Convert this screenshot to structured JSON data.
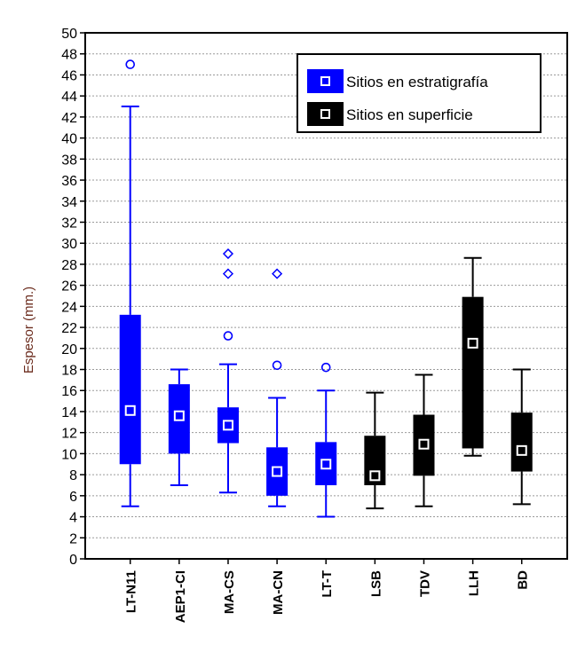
{
  "chart_data": {
    "type": "boxplot",
    "ylabel": "Espesor (mm.)",
    "ylim": [
      0,
      50
    ],
    "yticks": [
      0,
      2,
      4,
      6,
      8,
      10,
      12,
      14,
      16,
      18,
      20,
      22,
      24,
      26,
      28,
      30,
      32,
      34,
      36,
      38,
      40,
      42,
      44,
      46,
      48,
      50
    ],
    "grid": "horizontal-dotted",
    "legend_position": "top-right",
    "legend": [
      {
        "label": "Sitios en estratigrafía",
        "color": "#0000ff",
        "group": "estratigrafia"
      },
      {
        "label": "Sitios en superficie",
        "color": "#000000",
        "group": "superficie"
      }
    ],
    "categories": [
      "LT-N11",
      "AEP1-CI",
      "MA-CS",
      "MA-CN",
      "LT-T",
      "LSB",
      "TDV",
      "LLH",
      "BD"
    ],
    "boxes": [
      {
        "name": "LT-N11",
        "group": "estratigrafia",
        "median": 14.1,
        "q1": 9.0,
        "q3": 23.2,
        "whisker_low": 5.0,
        "whisker_high": 43.0,
        "outliers": [
          47.0
        ],
        "outlier_marker": "circle"
      },
      {
        "name": "AEP1-CI",
        "group": "estratigrafia",
        "median": 13.6,
        "q1": 10.0,
        "q3": 16.6,
        "whisker_low": 7.0,
        "whisker_high": 18.0,
        "outliers": [],
        "outlier_marker": "circle"
      },
      {
        "name": "MA-CS",
        "group": "estratigrafia",
        "median": 12.7,
        "q1": 11.0,
        "q3": 14.4,
        "whisker_low": 6.3,
        "whisker_high": 18.5,
        "outliers": [
          21.2
        ],
        "outlier_marker": "circle",
        "extremes": [
          27.1,
          29.0
        ],
        "extreme_marker": "diamond"
      },
      {
        "name": "MA-CN",
        "group": "estratigrafia",
        "median": 8.3,
        "q1": 6.0,
        "q3": 10.6,
        "whisker_low": 5.0,
        "whisker_high": 15.3,
        "outliers": [
          18.4
        ],
        "outlier_marker": "circle",
        "extremes": [
          27.1
        ],
        "extreme_marker": "diamond"
      },
      {
        "name": "LT-T",
        "group": "estratigrafia",
        "median": 9.0,
        "q1": 7.0,
        "q3": 11.1,
        "whisker_low": 4.0,
        "whisker_high": 16.0,
        "outliers": [
          18.2
        ],
        "outlier_marker": "circle"
      },
      {
        "name": "LSB",
        "group": "superficie",
        "median": 7.9,
        "q1": 7.0,
        "q3": 11.7,
        "whisker_low": 4.8,
        "whisker_high": 15.8,
        "outliers": []
      },
      {
        "name": "TDV",
        "group": "superficie",
        "median": 10.9,
        "q1": 7.9,
        "q3": 13.7,
        "whisker_low": 5.0,
        "whisker_high": 17.5,
        "outliers": []
      },
      {
        "name": "LLH",
        "group": "superficie",
        "median": 20.5,
        "q1": 10.5,
        "q3": 24.9,
        "whisker_low": 9.8,
        "whisker_high": 28.6,
        "outliers": []
      },
      {
        "name": "BD",
        "group": "superficie",
        "median": 10.3,
        "q1": 8.3,
        "q3": 13.9,
        "whisker_low": 5.2,
        "whisker_high": 18.0,
        "outliers": []
      }
    ],
    "colors": {
      "estratigrafia": "#0000ff",
      "superficie": "#000000",
      "grid": "#9a9a9a",
      "axis_title": "#6b2b1d"
    }
  }
}
